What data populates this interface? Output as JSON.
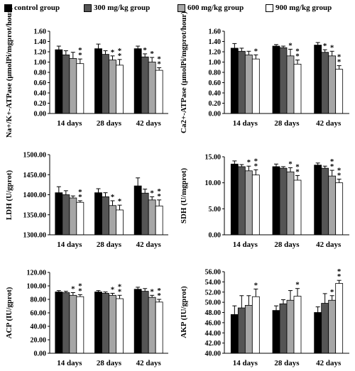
{
  "legend": [
    {
      "label": "control group",
      "color": "#000000"
    },
    {
      "label": "300 mg/kg group",
      "color": "#555555"
    },
    {
      "label": "600 mg/kg group",
      "color": "#a6a6a6"
    },
    {
      "label": "900 mg/kg group",
      "color": "#ffffff"
    }
  ],
  "chart_data": [
    {
      "type": "bar",
      "categories": [
        "14 days",
        "28 days",
        "42 days"
      ],
      "ylabel": "Na+/K+-ATPase (μmolPi/mgprot/hour)",
      "ylim": [
        0,
        1.6
      ],
      "yticks": [
        "0.00",
        "0.20",
        "0.40",
        "0.60",
        "0.80",
        "1.00",
        "1.20",
        "1.40",
        "1.60"
      ],
      "series": [
        {
          "name": "control group",
          "values": [
            1.24,
            1.26,
            1.26
          ],
          "errors": [
            0.07,
            0.09,
            0.05
          ]
        },
        {
          "name": "300 mg/kg group",
          "values": [
            1.14,
            1.15,
            1.1
          ],
          "errors": [
            0.08,
            0.07,
            0.06
          ]
        },
        {
          "name": "600 mg/kg group",
          "values": [
            1.07,
            1.04,
            1.0
          ],
          "errors": [
            0.12,
            0.08,
            0.09
          ]
        },
        {
          "name": "900 mg/kg group",
          "values": [
            0.97,
            0.94,
            0.84
          ],
          "errors": [
            0.09,
            0.11,
            0.05
          ]
        }
      ],
      "annotations": [
        [
          "",
          "",
          ""
        ],
        [
          "",
          "",
          "*"
        ],
        [
          "",
          "*",
          "*"
        ],
        [
          "* *",
          "* *",
          "* *"
        ]
      ]
    },
    {
      "type": "bar",
      "categories": [
        "14 days",
        "28 days",
        "42 days"
      ],
      "ylabel": "Ca2+-ATPase (μmolPi/mgprot/hour)",
      "ylim": [
        0,
        1.6
      ],
      "yticks": [
        "0.00",
        "0.20",
        "0.40",
        "0.60",
        "0.80",
        "1.00",
        "1.20",
        "1.40",
        "1.60"
      ],
      "series": [
        {
          "name": "control group",
          "values": [
            1.27,
            1.31,
            1.33
          ],
          "errors": [
            0.09,
            0.03,
            0.05
          ]
        },
        {
          "name": "300 mg/kg group",
          "values": [
            1.21,
            1.28,
            1.19
          ],
          "errors": [
            0.06,
            0.03,
            0.05
          ]
        },
        {
          "name": "600 mg/kg group",
          "values": [
            1.14,
            1.12,
            1.12
          ],
          "errors": [
            0.07,
            0.13,
            0.09
          ]
        },
        {
          "name": "900 mg/kg group",
          "values": [
            1.06,
            0.96,
            0.86
          ],
          "errors": [
            0.08,
            0.08,
            0.07
          ]
        }
      ],
      "annotations": [
        [
          "",
          "",
          ""
        ],
        [
          "",
          "",
          "*"
        ],
        [
          "",
          "*",
          "*"
        ],
        [
          "*",
          "* *",
          "* *"
        ]
      ]
    },
    {
      "type": "bar",
      "categories": [
        "14 days",
        "28 days",
        "42 days"
      ],
      "ylabel": "LDH (U/gprot)",
      "ylim": [
        1300,
        1500
      ],
      "yticks": [
        "1300.00",
        "1350.00",
        "1400.00",
        "1450.00",
        "1500.00"
      ],
      "series": [
        {
          "name": "control group",
          "values": [
            1405,
            1405,
            1422
          ],
          "errors": [
            15,
            10,
            20
          ]
        },
        {
          "name": "300 mg/kg group",
          "values": [
            1400,
            1395,
            1404
          ],
          "errors": [
            10,
            10,
            10
          ]
        },
        {
          "name": "600 mg/kg group",
          "values": [
            1392,
            1373,
            1387
          ],
          "errors": [
            5,
            12,
            8
          ]
        },
        {
          "name": "900 mg/kg group",
          "values": [
            1381,
            1362,
            1372
          ],
          "errors": [
            4,
            12,
            15
          ]
        }
      ],
      "annotations": [
        [
          "",
          "",
          ""
        ],
        [
          "",
          "",
          ""
        ],
        [
          "",
          "*",
          "*"
        ],
        [
          "* *",
          "*",
          "* *"
        ]
      ]
    },
    {
      "type": "bar",
      "categories": [
        "14 days",
        "28 days",
        "42 days"
      ],
      "ylabel": "SDH (U/mgprot)",
      "ylim": [
        0,
        15
      ],
      "yticks": [
        "0.00",
        "5.00",
        "10.00",
        "15.00"
      ],
      "series": [
        {
          "name": "control group",
          "values": [
            13.6,
            13.1,
            13.4
          ],
          "errors": [
            0.6,
            0.5,
            0.4
          ]
        },
        {
          "name": "300 mg/kg group",
          "values": [
            13.1,
            12.8,
            12.8
          ],
          "errors": [
            0.4,
            0.3,
            0.4
          ]
        },
        {
          "name": "600 mg/kg group",
          "values": [
            12.3,
            12.1,
            11.3
          ],
          "errors": [
            0.9,
            0.8,
            1.1
          ]
        },
        {
          "name": "900 mg/kg group",
          "values": [
            11.5,
            10.5,
            10.0
          ],
          "errors": [
            1.0,
            0.9,
            0.7
          ]
        }
      ],
      "annotations": [
        [
          "",
          "",
          ""
        ],
        [
          "",
          "",
          ""
        ],
        [
          "*",
          "*",
          "* *"
        ],
        [
          "* *",
          "* *",
          "* *"
        ]
      ]
    },
    {
      "type": "bar",
      "categories": [
        "14 days",
        "28 days",
        "42 days"
      ],
      "ylabel": "ACP (IU/gprot)",
      "ylim": [
        0,
        120
      ],
      "yticks": [
        "0.00",
        "20.00",
        "40.00",
        "60.00",
        "80.00",
        "100.00",
        "120.00"
      ],
      "series": [
        {
          "name": "control group",
          "values": [
            91,
            91,
            95
          ],
          "errors": [
            2,
            2,
            3
          ]
        },
        {
          "name": "300 mg/kg group",
          "values": [
            90,
            89,
            92
          ],
          "errors": [
            2,
            2,
            4
          ]
        },
        {
          "name": "600 mg/kg group",
          "values": [
            86,
            86,
            83
          ],
          "errors": [
            4,
            3,
            3
          ]
        },
        {
          "name": "900 mg/kg group",
          "values": [
            84,
            81,
            76
          ],
          "errors": [
            3,
            5,
            4
          ]
        }
      ],
      "annotations": [
        [
          "",
          "",
          ""
        ],
        [
          "",
          "",
          ""
        ],
        [
          "*",
          "*",
          "*"
        ],
        [
          "* *",
          "* *",
          "* *"
        ]
      ]
    },
    {
      "type": "bar",
      "categories": [
        "14 days",
        "28 days",
        "42 days"
      ],
      "ylabel": "AKP (IU/gprot)",
      "ylim": [
        40,
        56
      ],
      "yticks": [
        "40.00",
        "42.00",
        "44.00",
        "46.00",
        "48.00",
        "50.00",
        "52.00",
        "54.00",
        "56.00"
      ],
      "series": [
        {
          "name": "control group",
          "values": [
            47.6,
            48.4,
            48.0
          ],
          "errors": [
            1.7,
            0.9,
            1.1
          ]
        },
        {
          "name": "300 mg/kg group",
          "values": [
            48.9,
            49.7,
            49.8
          ],
          "errors": [
            2.4,
            0.8,
            1.9
          ]
        },
        {
          "name": "600 mg/kg group",
          "values": [
            49.4,
            50.4,
            50.4
          ],
          "errors": [
            1.9,
            1.9,
            0.9
          ]
        },
        {
          "name": "900 mg/kg group",
          "values": [
            51.1,
            51.2,
            53.7
          ],
          "errors": [
            1.5,
            1.5,
            0.6
          ]
        }
      ],
      "annotations": [
        [
          "",
          "",
          ""
        ],
        [
          "",
          "",
          ""
        ],
        [
          "",
          "",
          "*"
        ],
        [
          "*",
          "*",
          "* *"
        ]
      ]
    }
  ]
}
